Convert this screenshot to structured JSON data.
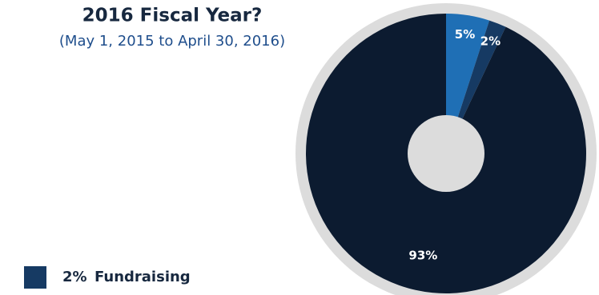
{
  "chart_data": {
    "type": "pie",
    "title": "2016 Fiscal Year?",
    "subtitle": "(May 1, 2015 to April 30, 2016)",
    "categories": [
      null,
      "Fundraising",
      null
    ],
    "values": [
      5,
      2,
      93
    ],
    "value_labels": [
      "5%",
      "2%",
      "93%"
    ],
    "colors": [
      "#1f6fb5",
      "#163a63",
      "#0c1b30"
    ],
    "legend": [
      1
    ]
  }
}
